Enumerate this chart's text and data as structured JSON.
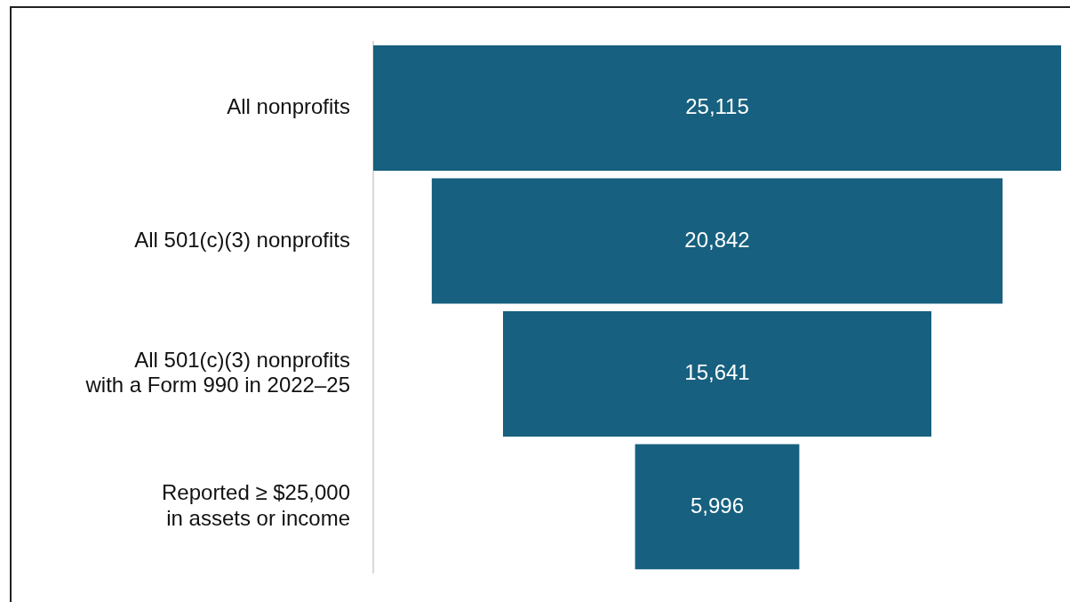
{
  "chart_data": {
    "type": "other",
    "categories": [
      "All nonprofits",
      "All 501(c)(3) nonprofits",
      "All 501(c)(3) nonprofits\nwith a Form 990 in 2022–25",
      "Reported ≥ $25,000\nin assets or income"
    ],
    "values": [
      25115,
      20842,
      15641,
      5996
    ],
    "color": "#17607f",
    "value_labels": [
      "25,115",
      "20,842",
      "15,641",
      "5,996"
    ]
  }
}
